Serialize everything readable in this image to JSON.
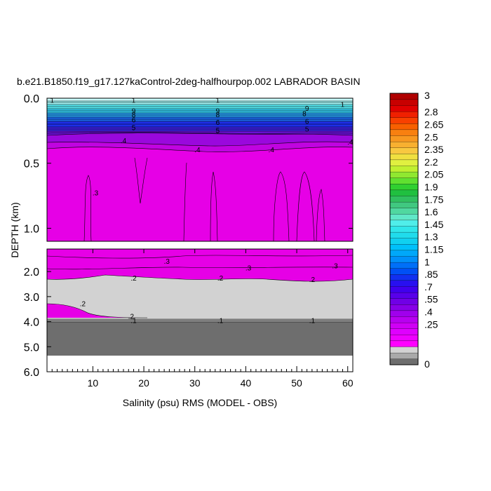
{
  "chart_data": {
    "type": "contour",
    "title": "b.e21.B1850.f19_g17.127kaControl-2deg-halfhourpop.002 LABRADOR BASIN",
    "xlabel": "Salinity (psu) RMS (MODEL - OBS)",
    "ylabel": "DEPTH (km)",
    "xlim": [
      1,
      61
    ],
    "x_ticks": [
      10,
      20,
      30,
      40,
      50,
      60
    ],
    "x_tick_labels": [
      "10",
      "20",
      "30",
      "40",
      "50",
      "60"
    ],
    "upper_panel": {
      "ylim": [
        0.0,
        1.1
      ],
      "y_ticks": [
        0.0,
        0.5,
        1.0
      ],
      "y_tick_labels": [
        "0.0",
        "0.5",
        "1.0"
      ]
    },
    "lower_panel": {
      "ylim": [
        1.1,
        6.0
      ],
      "y_ticks": [
        2.0,
        3.0,
        4.0,
        5.0,
        6.0
      ],
      "y_tick_labels": [
        "2.0",
        "3.0",
        "4.0",
        "5.0",
        "6.0"
      ]
    },
    "colorbar": {
      "labels": [
        "3",
        "2.8",
        "2.65",
        "2.5",
        "2.35",
        "2.2",
        "2.05",
        "1.9",
        "1.75",
        "1.6",
        "1.45",
        "1.3",
        "1.15",
        "1",
        ".85",
        ".7",
        ".55",
        ".4",
        ".25",
        "0"
      ],
      "label_positions": [
        3.0,
        2.8,
        2.65,
        2.5,
        2.35,
        2.2,
        2.05,
        1.9,
        1.75,
        1.6,
        1.45,
        1.3,
        1.15,
        1.0,
        0.85,
        0.7,
        0.55,
        0.4,
        0.25,
        0.0
      ]
    },
    "contour_labels": [
      {
        "text": "1",
        "x": 18,
        "y": 0.02
      },
      {
        "text": "1",
        "x": 34.5,
        "y": 0.02
      },
      {
        "text": "1",
        "x": 59,
        "y": 0.05
      },
      {
        "text": "1",
        "x": 2,
        "y": 0.02
      },
      {
        "text": "9",
        "x": 18,
        "y": 0.1
      },
      {
        "text": "8",
        "x": 18,
        "y": 0.13
      },
      {
        "text": "6",
        "x": 18,
        "y": 0.17
      },
      {
        "text": "5",
        "x": 18,
        "y": 0.23
      },
      {
        "text": "9",
        "x": 34.5,
        "y": 0.1
      },
      {
        "text": "8",
        "x": 34.5,
        "y": 0.13
      },
      {
        "text": "6",
        "x": 34.5,
        "y": 0.19
      },
      {
        "text": "5",
        "x": 34.5,
        "y": 0.25
      },
      {
        "text": "9",
        "x": 52,
        "y": 0.08
      },
      {
        "text": "8",
        "x": 51.5,
        "y": 0.12
      },
      {
        "text": "6",
        "x": 52,
        "y": 0.18
      },
      {
        "text": "5",
        "x": 52,
        "y": 0.24
      },
      {
        "text": ".4",
        "x": 16,
        "y": 0.33
      },
      {
        "text": ".4",
        "x": 30.5,
        "y": 0.4
      },
      {
        "text": ".4",
        "x": 45,
        "y": 0.4
      },
      {
        "text": ".4",
        "x": 60.5,
        "y": 0.34
      },
      {
        "text": ".3",
        "x": 10.5,
        "y": 0.73
      },
      {
        "text": ".3",
        "x": 24.5,
        "y": 1.6
      },
      {
        "text": ".3",
        "x": 40.5,
        "y": 1.87
      },
      {
        "text": ".3",
        "x": 57.5,
        "y": 1.78
      },
      {
        "text": ".2",
        "x": 18,
        "y": 2.27
      },
      {
        "text": ".2",
        "x": 35,
        "y": 2.28
      },
      {
        "text": ".2",
        "x": 53,
        "y": 2.33
      },
      {
        "text": ".2",
        "x": 8,
        "y": 3.3
      },
      {
        "text": ".2",
        "x": 17.5,
        "y": 3.8
      },
      {
        "text": ".1",
        "x": 18,
        "y": 3.97
      },
      {
        "text": ".1",
        "x": 35,
        "y": 3.97
      },
      {
        "text": ".1",
        "x": 53,
        "y": 3.97
      }
    ]
  }
}
